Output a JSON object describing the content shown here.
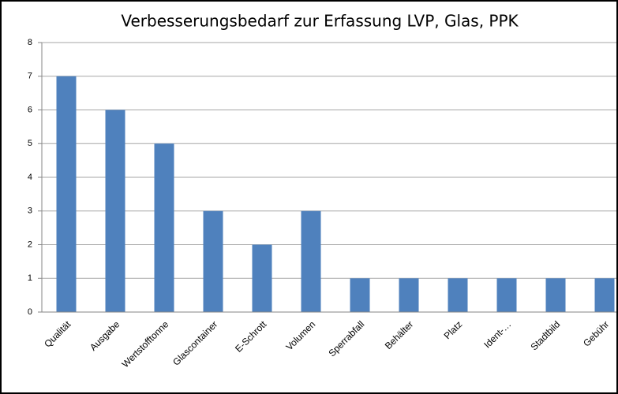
{
  "chart_data": {
    "type": "bar",
    "title": "Verbesserungsbedarf zur Erfassung LVP, Glas, PPK",
    "categories": [
      "Qualität",
      "Ausgabe",
      "Wertstofftonne",
      "Glascontainer",
      "E-Schrott",
      "Volumen",
      "Sperrabfall",
      "Behälter",
      "Platz",
      "Ident-…",
      "Stadtbild",
      "Gebühr"
    ],
    "values": [
      7,
      6,
      5,
      3,
      2,
      3,
      1,
      1,
      1,
      1,
      1,
      1
    ],
    "color": "#4f81bd",
    "ylim": [
      0,
      8
    ],
    "yticks": [
      0,
      1,
      2,
      3,
      4,
      5,
      6,
      7,
      8
    ],
    "grid": true
  }
}
